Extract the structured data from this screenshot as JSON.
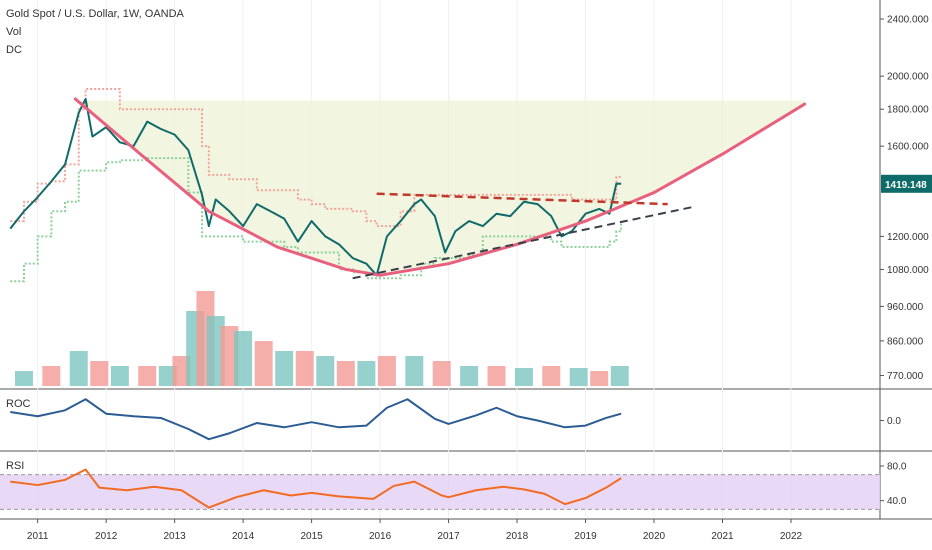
{
  "header": {
    "symbol_title": "Gold Spot / U.S. Dollar, 1W, OANDA",
    "vol_label": "Vol",
    "dc_label": "DC"
  },
  "colors": {
    "price_line": "#0f6b6a",
    "cup_curve": "#e8607e",
    "resistance": "#c0392b",
    "support": "#3a3f4a",
    "dc_upper": "#f3a39a",
    "dc_lower": "#8cd09a",
    "zone_fill": "#eef3d6",
    "vol_up": "#7cc6c0",
    "vol_down": "#f29a93",
    "roc_line": "#2b5d94",
    "rsi_line": "#f36b22",
    "rsi_band": "#e4d3f4",
    "price_badge": "#0f6b6a"
  },
  "chart_data": [
    {
      "type": "line",
      "title": "Gold Spot / U.S. Dollar, 1W, OANDA",
      "x": [
        2010.6,
        2010.8,
        2011.0,
        2011.2,
        2011.4,
        2011.6,
        2011.7,
        2011.8,
        2012.0,
        2012.2,
        2012.4,
        2012.6,
        2012.8,
        2013.0,
        2013.2,
        2013.4,
        2013.5,
        2013.6,
        2013.8,
        2014.0,
        2014.2,
        2014.4,
        2014.6,
        2014.8,
        2015.0,
        2015.2,
        2015.4,
        2015.6,
        2015.8,
        2015.95,
        2016.1,
        2016.3,
        2016.5,
        2016.6,
        2016.8,
        2016.95,
        2017.1,
        2017.3,
        2017.5,
        2017.7,
        2017.9,
        2018.1,
        2018.3,
        2018.5,
        2018.65,
        2018.8,
        2019.0,
        2019.2,
        2019.35,
        2019.45,
        2019.52
      ],
      "series": [
        {
          "name": "Gold price",
          "values": [
            1230,
            1300,
            1360,
            1430,
            1510,
            1780,
            1860,
            1650,
            1700,
            1620,
            1600,
            1730,
            1690,
            1660,
            1580,
            1370,
            1240,
            1350,
            1300,
            1240,
            1330,
            1300,
            1270,
            1180,
            1260,
            1200,
            1170,
            1120,
            1100,
            1060,
            1200,
            1260,
            1330,
            1350,
            1280,
            1140,
            1220,
            1260,
            1240,
            1290,
            1280,
            1340,
            1330,
            1280,
            1200,
            1220,
            1290,
            1310,
            1290,
            1420,
            1419.148
          ]
        },
        {
          "name": "Donchian upper",
          "values": [
            1260,
            1340,
            1420,
            1430,
            1510,
            1800,
            1920,
            1920,
            1920,
            1800,
            1800,
            1800,
            1800,
            1800,
            1800,
            1600,
            1460,
            1460,
            1440,
            1440,
            1390,
            1390,
            1390,
            1350,
            1330,
            1310,
            1310,
            1300,
            1260,
            1240,
            1240,
            1300,
            1370,
            1370,
            1370,
            1370,
            1370,
            1370,
            1370,
            1370,
            1370,
            1370,
            1370,
            1370,
            1370,
            1350,
            1350,
            1350,
            1350,
            1450,
            1450
          ]
        },
        {
          "name": "Donchian lower",
          "values": [
            1040,
            1100,
            1200,
            1300,
            1340,
            1480,
            1480,
            1480,
            1520,
            1530,
            1530,
            1540,
            1540,
            1540,
            1380,
            1200,
            1200,
            1200,
            1200,
            1180,
            1180,
            1180,
            1160,
            1140,
            1140,
            1140,
            1080,
            1070,
            1050,
            1050,
            1050,
            1060,
            1060,
            1100,
            1120,
            1120,
            1120,
            1130,
            1200,
            1200,
            1200,
            1200,
            1200,
            1180,
            1160,
            1160,
            1160,
            1160,
            1180,
            1220,
            1260
          ]
        }
      ],
      "annotations": {
        "price_label": "1419.148",
        "cup_curve": {
          "x": [
            2011.55,
            2012.5,
            2013.5,
            2014.5,
            2015.5,
            2016.0,
            2017.0,
            2018.0,
            2019.0,
            2020.0,
            2021.0,
            2022.2
          ],
          "y": [
            1860,
            1560,
            1300,
            1160,
            1080,
            1060,
            1100,
            1170,
            1260,
            1380,
            1560,
            1830
          ]
        },
        "resistance_line": {
          "x": [
            2015.95,
            2020.2
          ],
          "y": [
            1375,
            1330
          ]
        },
        "support_line": {
          "x": [
            2015.6,
            2020.6
          ],
          "y": [
            1050,
            1320
          ]
        },
        "highlight_zone": {
          "x_range": [
            2011.55,
            2022.2
          ],
          "y_range": [
            1060,
            1850
          ]
        }
      },
      "y_axis": {
        "scale": "log",
        "ylim": [
          740,
          2550
        ],
        "ticks": [
          "2400.000",
          "2000.000",
          "1800.000",
          "1600.000",
          "1200.000",
          "1080.000",
          "960.000",
          "860.000",
          "770.000"
        ]
      },
      "x_axis": {
        "xlim": [
          2010.45,
          2023.3
        ],
        "ticks": [
          "2011",
          "2012",
          "2013",
          "2014",
          "2015",
          "2016",
          "2017",
          "2018",
          "2019",
          "2020",
          "2021",
          "2022"
        ]
      }
    },
    {
      "type": "bar",
      "title": "Vol",
      "x": [
        2010.8,
        2011.2,
        2011.6,
        2011.9,
        2012.2,
        2012.6,
        2012.9,
        2013.1,
        2013.3,
        2013.45,
        2013.6,
        2013.8,
        2014.0,
        2014.3,
        2014.6,
        2014.9,
        2015.2,
        2015.5,
        2015.8,
        2016.1,
        2016.5,
        2016.9,
        2017.3,
        2017.7,
        2018.1,
        2018.5,
        2018.9,
        2019.2,
        2019.5
      ],
      "values": [
        0.15,
        0.2,
        0.35,
        0.25,
        0.2,
        0.2,
        0.2,
        0.3,
        0.75,
        0.95,
        0.7,
        0.6,
        0.55,
        0.45,
        0.35,
        0.35,
        0.3,
        0.25,
        0.25,
        0.3,
        0.3,
        0.25,
        0.2,
        0.2,
        0.18,
        0.2,
        0.18,
        0.15,
        0.2
      ]
    },
    {
      "type": "line",
      "title": "ROC",
      "x": [
        2010.6,
        2011.0,
        2011.4,
        2011.7,
        2012.0,
        2012.4,
        2012.8,
        2013.2,
        2013.5,
        2013.8,
        2014.2,
        2014.6,
        2015.0,
        2015.4,
        2015.8,
        2016.1,
        2016.4,
        2016.8,
        2017.0,
        2017.4,
        2017.7,
        2018.0,
        2018.3,
        2018.7,
        2019.0,
        2019.3,
        2019.52
      ],
      "values": [
        10,
        5,
        12,
        25,
        8,
        5,
        3,
        -10,
        -22,
        -15,
        -3,
        -8,
        -2,
        -8,
        -6,
        15,
        25,
        2,
        -4,
        6,
        15,
        5,
        0,
        -8,
        -6,
        3,
        8
      ],
      "y_ticks": [
        "0.0"
      ]
    },
    {
      "type": "line",
      "title": "RSI",
      "x": [
        2010.6,
        2011.0,
        2011.4,
        2011.7,
        2011.9,
        2012.3,
        2012.7,
        2013.1,
        2013.5,
        2013.9,
        2014.3,
        2014.7,
        2015.0,
        2015.4,
        2015.9,
        2016.2,
        2016.5,
        2016.9,
        2017.0,
        2017.4,
        2017.8,
        2018.1,
        2018.4,
        2018.7,
        2019.0,
        2019.3,
        2019.52
      ],
      "values": [
        62,
        58,
        64,
        76,
        55,
        52,
        56,
        52,
        32,
        44,
        52,
        46,
        49,
        45,
        42,
        57,
        62,
        46,
        44,
        52,
        56,
        53,
        48,
        36,
        43,
        55,
        66
      ],
      "ylim": [
        20,
        95
      ],
      "bands": [
        70,
        30
      ],
      "y_ticks": [
        "80.0",
        "40.0"
      ]
    }
  ],
  "panels": {
    "roc_label": "ROC",
    "rsi_label": "RSI"
  }
}
